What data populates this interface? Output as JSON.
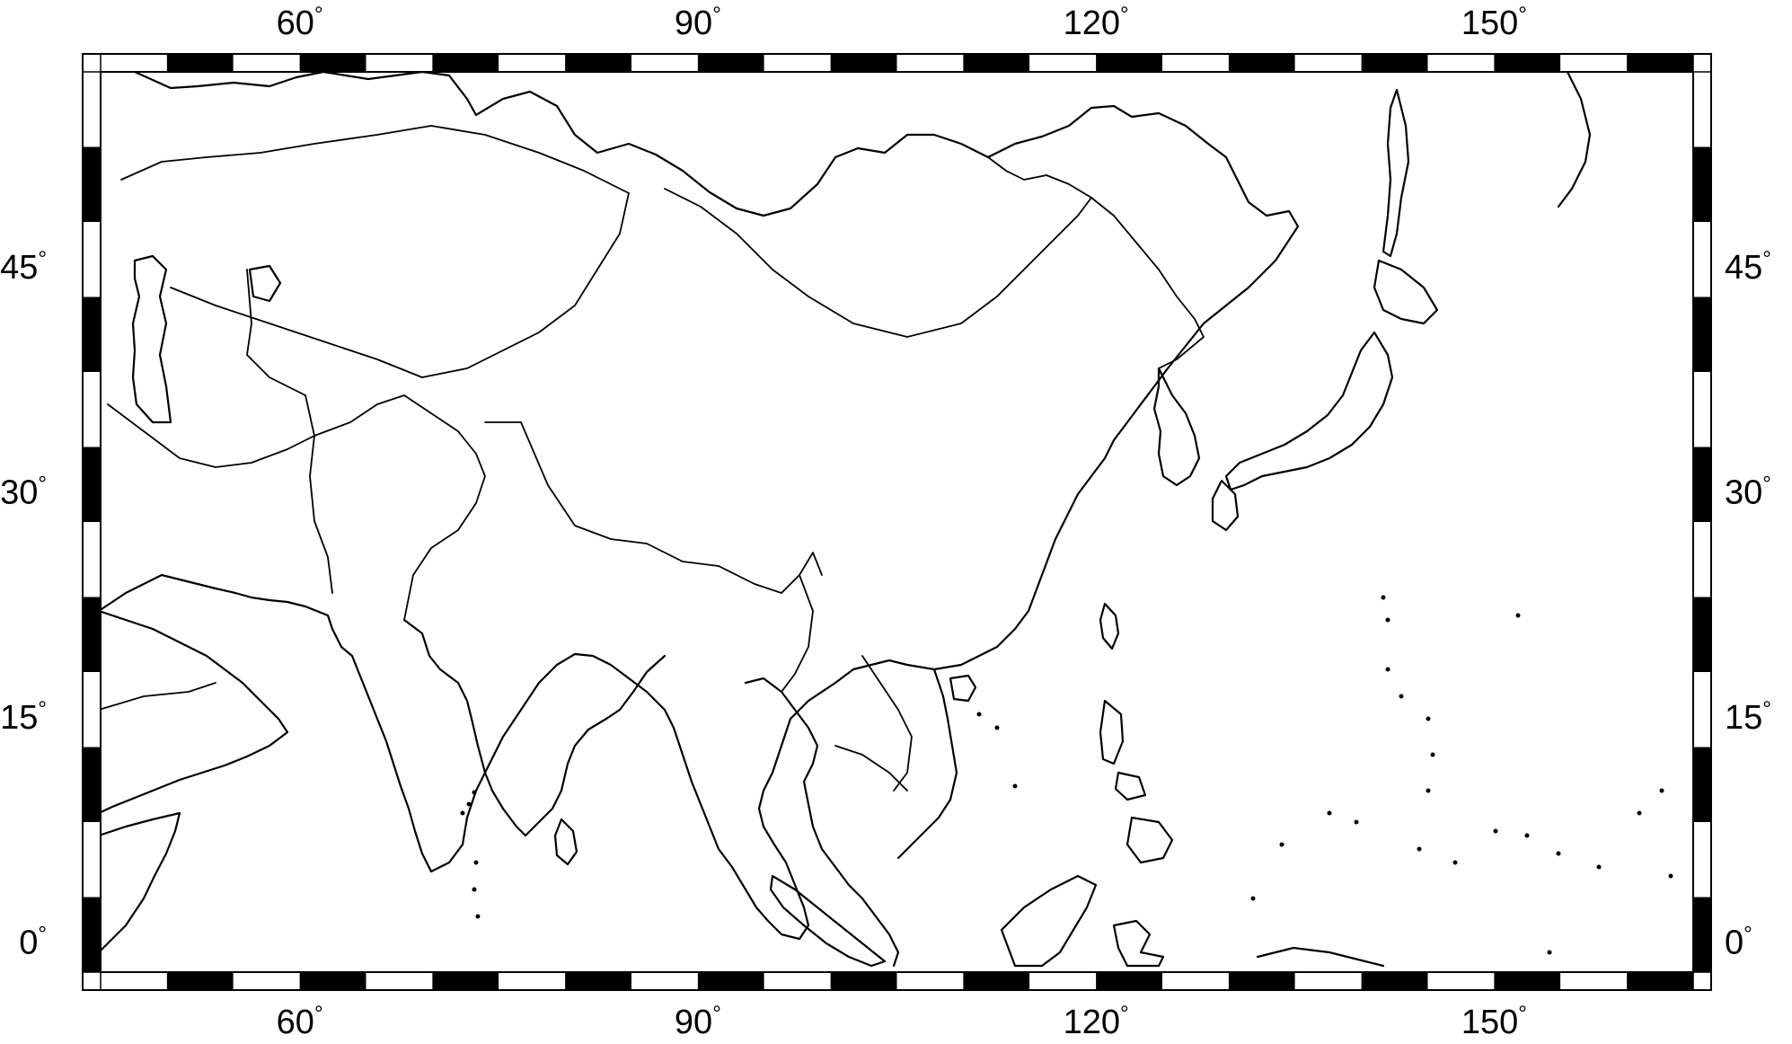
{
  "map": {
    "projection": "equirectangular",
    "extent": {
      "lon_min": 45,
      "lon_max": 165,
      "lat_min": -2,
      "lat_max": 58
    },
    "frame_tick_interval_deg": 5,
    "label_interval_deg": 15,
    "colors": {
      "land_outline": "#000000",
      "background": "#ffffff",
      "frame_dark": "#000000",
      "frame_light": "#ffffff"
    }
  },
  "axes": {
    "lon_labels": [
      {
        "lon": 60,
        "text": "60"
      },
      {
        "lon": 90,
        "text": "90"
      },
      {
        "lon": 120,
        "text": "120"
      },
      {
        "lon": 150,
        "text": "150"
      }
    ],
    "lat_labels": [
      {
        "lat": 45,
        "text": "45"
      },
      {
        "lat": 30,
        "text": "30"
      },
      {
        "lat": 15,
        "text": "15"
      },
      {
        "lat": 0,
        "text": "0"
      }
    ],
    "degree_symbol": "°"
  }
}
